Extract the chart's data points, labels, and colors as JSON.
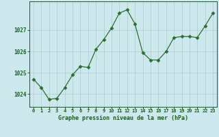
{
  "x": [
    0,
    1,
    2,
    3,
    4,
    5,
    6,
    7,
    8,
    9,
    10,
    11,
    12,
    13,
    14,
    15,
    16,
    17,
    18,
    19,
    20,
    21,
    22,
    23
  ],
  "y": [
    1024.7,
    1024.3,
    1023.75,
    1023.8,
    1024.3,
    1024.9,
    1025.3,
    1025.25,
    1026.1,
    1026.55,
    1027.1,
    1027.8,
    1027.95,
    1027.3,
    1025.95,
    1025.6,
    1025.6,
    1026.0,
    1026.65,
    1026.7,
    1026.7,
    1026.65,
    1027.2,
    1027.8
  ],
  "line_color": "#2d6e2d",
  "marker": "D",
  "marker_size": 2.5,
  "bg_color": "#cce8ec",
  "grid_color": "#aacccc",
  "xlabel": "Graphe pression niveau de la mer (hPa)",
  "xlabel_color": "#1a5e1a",
  "tick_color": "#1a5e1a",
  "ylim": [
    1023.4,
    1028.35
  ],
  "yticks": [
    1024,
    1025,
    1026,
    1027
  ],
  "spine_color": "#1a5e1a"
}
